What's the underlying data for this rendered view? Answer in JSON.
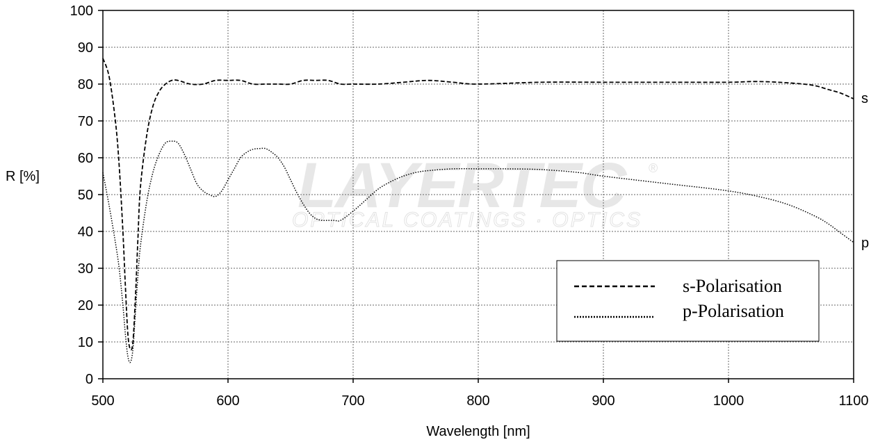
{
  "watermark": {
    "brand": "LAYERTEC",
    "tagline": "OPTICAL COATINGS · OPTICS",
    "registered": "®"
  },
  "chart_data": {
    "type": "line",
    "xlabel": "Wavelength [nm]",
    "ylabel": "R [%]",
    "xlim": [
      500,
      1100
    ],
    "ylim": [
      0,
      100
    ],
    "xticks": [
      500,
      600,
      700,
      800,
      900,
      1000,
      1100
    ],
    "yticks": [
      0,
      10,
      20,
      30,
      40,
      50,
      60,
      70,
      80,
      90,
      100
    ],
    "grid": true,
    "legend_position": "bottom-right",
    "series": [
      {
        "name": "s-Polarisation",
        "end_label": "s",
        "line_style": "dashed",
        "color": "#000000",
        "x": [
          500,
          505,
          510,
          513,
          516,
          518,
          520,
          522,
          524,
          526,
          528,
          530,
          535,
          540,
          545,
          550,
          555,
          560,
          570,
          580,
          590,
          600,
          610,
          620,
          630,
          640,
          650,
          660,
          670,
          680,
          690,
          700,
          720,
          740,
          760,
          780,
          800,
          850,
          900,
          950,
          1000,
          1020,
          1040,
          1060,
          1070,
          1080,
          1090,
          1100
        ],
        "y": [
          87,
          82,
          70,
          58,
          40,
          25,
          12,
          8,
          10,
          22,
          38,
          52,
          66,
          74,
          78,
          80,
          81,
          81,
          80,
          80,
          81,
          81,
          81,
          80,
          80,
          80,
          80,
          81,
          81,
          81,
          80,
          80,
          80,
          80.5,
          81,
          80.5,
          80,
          80.5,
          80.5,
          80.5,
          80.5,
          80.7,
          80.5,
          80,
          79.5,
          78.5,
          77.5,
          76
        ]
      },
      {
        "name": "p-Polarisation",
        "end_label": "p",
        "line_style": "dotted",
        "color": "#000000",
        "x": [
          500,
          505,
          510,
          513,
          516,
          518,
          520,
          522,
          524,
          526,
          528,
          530,
          535,
          540,
          545,
          550,
          555,
          560,
          565,
          570,
          575,
          580,
          585,
          590,
          595,
          600,
          605,
          610,
          615,
          620,
          625,
          630,
          635,
          640,
          645,
          650,
          655,
          660,
          665,
          670,
          675,
          680,
          685,
          690,
          700,
          710,
          720,
          730,
          740,
          750,
          760,
          780,
          800,
          820,
          850,
          880,
          900,
          950,
          1000,
          1030,
          1050,
          1070,
          1080,
          1090,
          1100
        ],
        "y": [
          56,
          47,
          37,
          30,
          20,
          12,
          6,
          4.5,
          8,
          18,
          28,
          36,
          48,
          56,
          61,
          64,
          64.5,
          64,
          61,
          57,
          53,
          51,
          50,
          49.5,
          51,
          54,
          57,
          60,
          61.5,
          62.3,
          62.5,
          62.5,
          61.5,
          60,
          57.5,
          54,
          50.5,
          47.5,
          45,
          43.5,
          43,
          43,
          43,
          43,
          45.5,
          48.5,
          51.5,
          53.5,
          55,
          56,
          56.5,
          57,
          57,
          57,
          56.8,
          56,
          55,
          53,
          51,
          49,
          47,
          44,
          42,
          39.5,
          37
        ]
      }
    ]
  }
}
